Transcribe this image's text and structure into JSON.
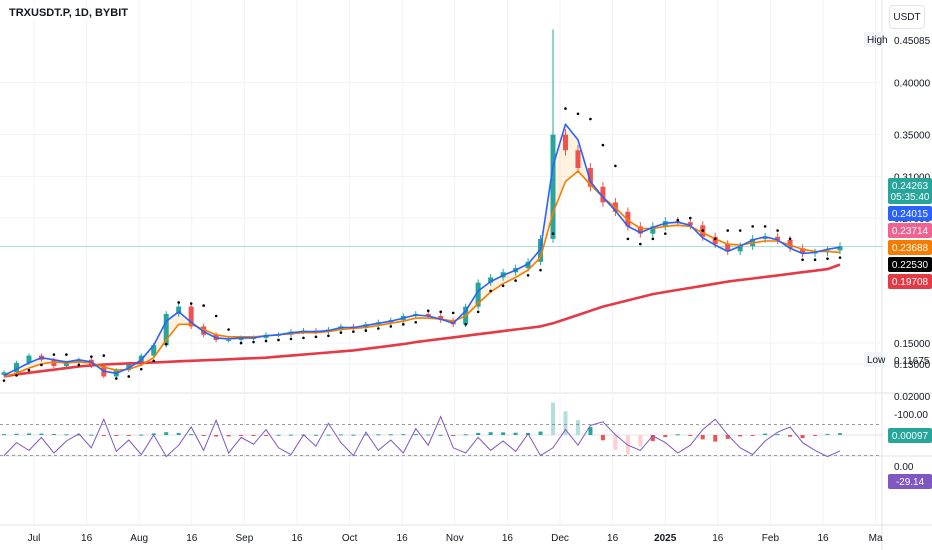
{
  "header": {
    "symbol": "TRXUSDT.P, 1D, BYBIT",
    "currency": "USDT"
  },
  "colors": {
    "blue": "#2962ff",
    "orange": "#f57c00",
    "red": "#e53946",
    "pink": "#f06292",
    "dots": "#000000",
    "up": "#26a69a",
    "down": "#ef5350",
    "purple": "#7e57c2",
    "price_line": "#26a69a"
  },
  "chart_data": [
    {
      "type": "line",
      "title": "",
      "x_labels": [
        "Jul",
        "16",
        "Aug",
        "16",
        "Sep",
        "16",
        "Oct",
        "16",
        "Nov",
        "16",
        "Dec",
        "16",
        "2025",
        "16",
        "Feb",
        "16",
        "Ma"
      ],
      "y_ticks": [
        0.4,
        0.35,
        0.31,
        0.27,
        0.15,
        0.13
      ],
      "ylim": [
        0.105,
        0.46
      ],
      "high_label": "High",
      "high_value": "0.45085",
      "low_label": "Low",
      "low_value": "0.11675",
      "price_tags": [
        {
          "value": "0.24263",
          "sub": "05:35:40",
          "color": "#26a69a"
        },
        {
          "value": "0.24015",
          "color": "#2962ff"
        },
        {
          "value": "0.23714",
          "color": "#f06292"
        },
        {
          "value": "0.23688",
          "color": "#f57c00"
        },
        {
          "value": "0.22530",
          "color": "#000000"
        },
        {
          "value": "0.19708",
          "color": "#e53946"
        }
      ],
      "series": [
        {
          "key": "price",
          "values": [
            0.122,
            0.131,
            0.138,
            0.134,
            0.128,
            0.131,
            0.134,
            0.128,
            0.118,
            0.124,
            0.13,
            0.138,
            0.148,
            0.178,
            0.185,
            0.166,
            0.158,
            0.153,
            0.153,
            0.155,
            0.155,
            0.158,
            0.158,
            0.161,
            0.162,
            0.161,
            0.163,
            0.166,
            0.165,
            0.168,
            0.17,
            0.172,
            0.176,
            0.178,
            0.176,
            0.172,
            0.168,
            0.185,
            0.208,
            0.213,
            0.218,
            0.222,
            0.228,
            0.25,
            0.35,
            0.335,
            0.318,
            0.3,
            0.285,
            0.276,
            0.262,
            0.255,
            0.262,
            0.267,
            0.266,
            0.263,
            0.252,
            0.245,
            0.238,
            0.243,
            0.25,
            0.252,
            0.249,
            0.241,
            0.236,
            0.237,
            0.239,
            0.243
          ]
        },
        {
          "key": "ema_fast",
          "values": [
            0.119,
            0.125,
            0.131,
            0.136,
            0.134,
            0.132,
            0.134,
            0.132,
            0.123,
            0.121,
            0.126,
            0.134,
            0.148,
            0.171,
            0.18,
            0.17,
            0.161,
            0.155,
            0.154,
            0.155,
            0.155,
            0.157,
            0.158,
            0.16,
            0.161,
            0.161,
            0.162,
            0.165,
            0.165,
            0.167,
            0.169,
            0.171,
            0.174,
            0.177,
            0.176,
            0.173,
            0.169,
            0.181,
            0.2,
            0.209,
            0.215,
            0.22,
            0.226,
            0.24,
            0.32,
            0.36,
            0.345,
            0.305,
            0.29,
            0.277,
            0.262,
            0.256,
            0.261,
            0.265,
            0.266,
            0.263,
            0.251,
            0.244,
            0.238,
            0.243,
            0.249,
            0.252,
            0.249,
            0.241,
            0.236,
            0.237,
            0.24,
            0.242
          ]
        },
        {
          "key": "ema_slow",
          "values": [
            0.118,
            0.121,
            0.126,
            0.13,
            0.132,
            0.131,
            0.132,
            0.131,
            0.127,
            0.124,
            0.125,
            0.129,
            0.136,
            0.153,
            0.168,
            0.168,
            0.163,
            0.158,
            0.156,
            0.156,
            0.156,
            0.157,
            0.158,
            0.159,
            0.16,
            0.16,
            0.161,
            0.163,
            0.164,
            0.165,
            0.167,
            0.169,
            0.171,
            0.174,
            0.174,
            0.173,
            0.171,
            0.176,
            0.188,
            0.199,
            0.207,
            0.213,
            0.22,
            0.232,
            0.275,
            0.305,
            0.315,
            0.302,
            0.29,
            0.28,
            0.268,
            0.26,
            0.26,
            0.262,
            0.263,
            0.262,
            0.256,
            0.25,
            0.245,
            0.244,
            0.246,
            0.248,
            0.248,
            0.244,
            0.24,
            0.238,
            0.238,
            0.237
          ]
        },
        {
          "key": "ma_long",
          "values": [
            0.118,
            0.12,
            0.1215,
            0.123,
            0.1245,
            0.126,
            0.1275,
            0.1285,
            0.1295,
            0.13,
            0.1305,
            0.131,
            0.1315,
            0.132,
            0.1325,
            0.133,
            0.1335,
            0.134,
            0.1345,
            0.135,
            0.1355,
            0.136,
            0.137,
            0.138,
            0.139,
            0.14,
            0.141,
            0.142,
            0.143,
            0.1445,
            0.146,
            0.1475,
            0.149,
            0.151,
            0.1525,
            0.154,
            0.1555,
            0.157,
            0.1585,
            0.16,
            0.1615,
            0.163,
            0.1645,
            0.166,
            0.169,
            0.173,
            0.177,
            0.181,
            0.185,
            0.188,
            0.191,
            0.194,
            0.197,
            0.199,
            0.201,
            0.203,
            0.205,
            0.207,
            0.209,
            0.2105,
            0.212,
            0.2135,
            0.215,
            0.2165,
            0.218,
            0.2195,
            0.221,
            0.2253
          ]
        },
        {
          "key": "psar",
          "values": [
            0.114,
            0.119,
            0.124,
            0.129,
            0.139,
            0.139,
            0.129,
            0.137,
            0.138,
            0.116,
            0.118,
            0.125,
            0.133,
            0.149,
            0.189,
            0.188,
            0.186,
            0.176,
            0.163,
            0.15,
            0.151,
            0.152,
            0.153,
            0.154,
            0.155,
            0.156,
            0.157,
            0.16,
            0.161,
            0.162,
            0.164,
            0.166,
            0.168,
            0.17,
            0.181,
            0.18,
            0.179,
            0.168,
            0.18,
            0.2,
            0.205,
            0.21,
            0.215,
            0.22,
            0.255,
            0.375,
            0.37,
            0.365,
            0.34,
            0.32,
            0.25,
            0.245,
            0.25,
            0.255,
            0.268,
            0.27,
            0.258,
            0.25,
            0.258,
            0.258,
            0.262,
            0.262,
            0.258,
            0.25,
            0.23,
            0.23,
            0.231,
            0.232
          ]
        }
      ]
    },
    {
      "type": "bar",
      "title": "",
      "y_ticks": [
        0.02
      ],
      "current_value": "0.00097",
      "values": [
        0.0005,
        0.0007,
        0.0009,
        0.0008,
        0.0006,
        0.0004,
        0.0003,
        0.0002,
        -0.0004,
        -0.0006,
        -0.0003,
        0.0002,
        0.0009,
        0.0016,
        0.0012,
        0.0005,
        -0.0004,
        -0.0009,
        -0.0008,
        -0.0005,
        -0.0003,
        -0.0002,
        0.0001,
        0.0002,
        0.0002,
        0.0001,
        0.0002,
        0.0003,
        0.0002,
        0.0003,
        0.0004,
        0.0004,
        0.0005,
        0.0005,
        0.0003,
        0.0001,
        -0.0002,
        0.0004,
        0.0012,
        0.0016,
        0.0015,
        0.0013,
        0.0012,
        0.002,
        0.0185,
        0.0135,
        0.0085,
        0.0045,
        -0.003,
        -0.0085,
        -0.011,
        -0.0065,
        -0.0035,
        -0.0012,
        0.0004,
        -0.0005,
        -0.0025,
        -0.0038,
        -0.0022,
        -0.0008,
        -0.0004,
        0.0008,
        0.0005,
        -0.001,
        -0.0018,
        -0.0005,
        0.0006,
        0.001
      ]
    },
    {
      "type": "line",
      "title": "",
      "y_ticks": [
        0.0,
        -100.0
      ],
      "current_value": "-29.14",
      "values": [
        -20,
        -45,
        -30,
        -55,
        -25,
        -48,
        -62,
        -35,
        -90,
        -28,
        -50,
        -22,
        -60,
        -18,
        -40,
        -75,
        -30,
        -88,
        -25,
        -55,
        -42,
        -70,
        -35,
        -22,
        -60,
        -38,
        -82,
        -45,
        -20,
        -65,
        -30,
        -50,
        -25,
        -72,
        -40,
        -95,
        -35,
        -25,
        -55,
        -30,
        -48,
        -28,
        -62,
        -20,
        -35,
        -70,
        -40,
        -78,
        -85,
        -60,
        -40,
        -30,
        -58,
        -45,
        -25,
        -40,
        -70,
        -90,
        -60,
        -35,
        -22,
        -48,
        -65,
        -75,
        -45,
        -30,
        -18,
        -29
      ]
    }
  ]
}
